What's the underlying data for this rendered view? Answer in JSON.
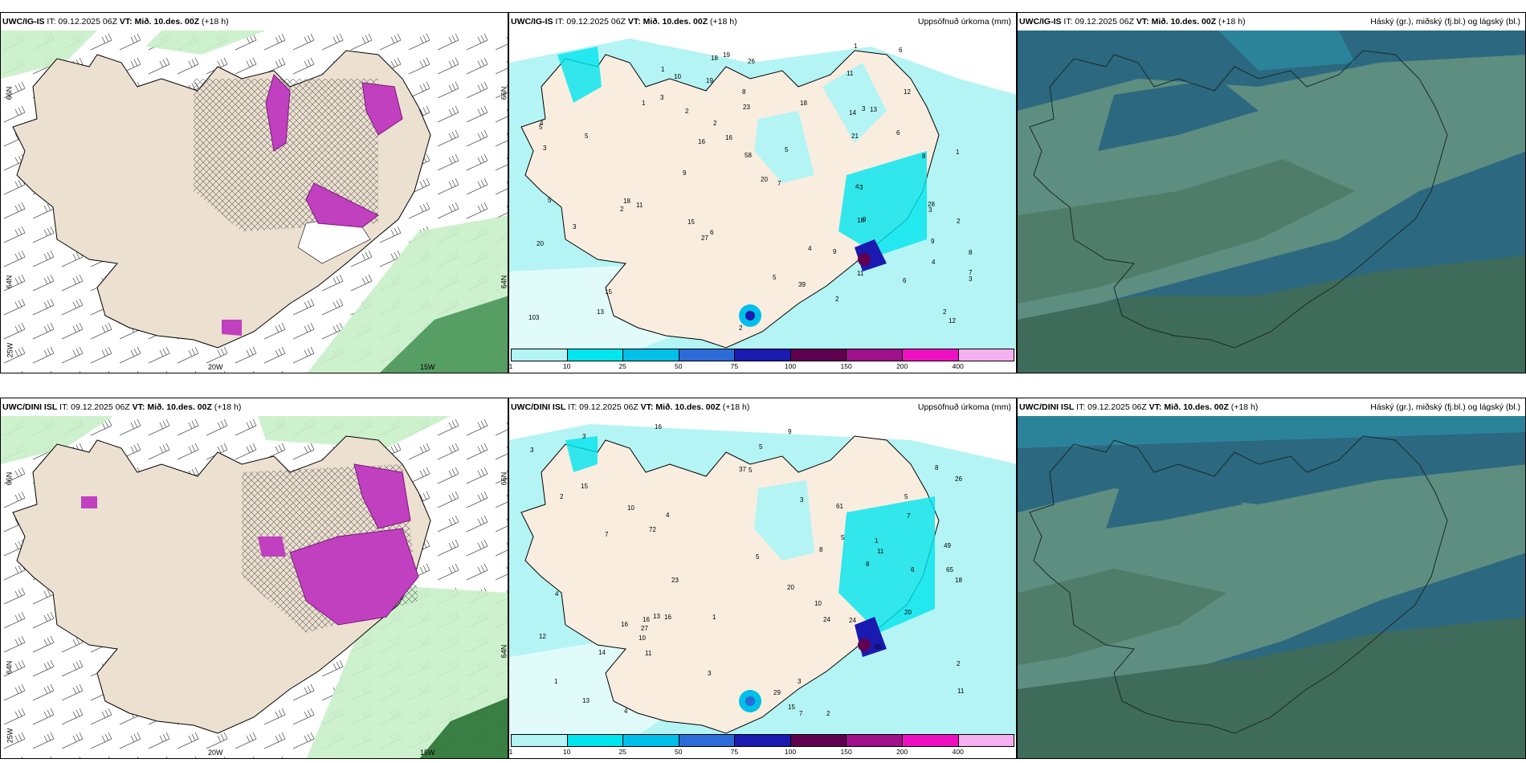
{
  "panels": [
    {
      "model": "UWC/IG-IS",
      "it": "IT: 09.12.2025 06Z",
      "vt": "VT: Mið. 10.des. 00Z",
      "lead": "(+18 h)",
      "right": "",
      "lon_labels": [
        "20W",
        "15W"
      ],
      "lat_labels": [
        "66N",
        "64N",
        "25W",
        "66N",
        "64N"
      ]
    },
    {
      "model": "UWC/IG-IS",
      "it": "IT: 09.12.2025 06Z",
      "vt": "VT: Mið. 10.des. 00Z",
      "lead": "(+18 h)",
      "right": "Uppsöfnuð úrkoma (mm)",
      "colorbar": [
        "1",
        "10",
        "25",
        "50",
        "75",
        "100",
        "150",
        "200",
        "400"
      ]
    },
    {
      "model": "UWC/IG-IS",
      "it": "IT: 09.12.2025 06Z",
      "vt": "VT: Mið. 10.des. 00Z",
      "lead": "(+18 h)",
      "right": "Háský (gr.), miðský (fj.bl.) og lágský (bl.)"
    },
    {
      "model": "UWC/DINI ISL",
      "it": "IT: 09.12.2025 06Z",
      "vt": "VT: Mið. 10.des. 00Z",
      "lead": "(+18 h)",
      "right": "",
      "lon_labels": [
        "20W",
        "15W"
      ],
      "lat_labels": [
        "66N",
        "64N",
        "25W",
        "66N",
        "64N"
      ]
    },
    {
      "model": "UWC/DINI ISL",
      "it": "IT: 09.12.2025 06Z",
      "vt": "VT: Mið. 10.des. 00Z",
      "lead": "(+18 h)",
      "right": "Uppsöfnuð úrkoma (mm)",
      "colorbar": [
        "1",
        "10",
        "25",
        "50",
        "75",
        "100",
        "150",
        "200",
        "400"
      ]
    },
    {
      "model": "UWC/DINI ISL",
      "it": "IT: 09.12.2025 06Z",
      "vt": "VT: Mið. 10.des. 00Z",
      "lead": "(+18 h)",
      "right": "Háský (gr.), miðský (fj.bl.) og lágský (bl.)"
    }
  ],
  "precip_values_top": [
    "2",
    "11",
    "23",
    "9",
    "2",
    "5",
    "10",
    "3",
    "3",
    "3",
    "2",
    "4",
    "1",
    "1",
    "2",
    "2",
    "1",
    "3",
    "2",
    "3",
    "9",
    "9",
    "7",
    "26",
    "103",
    "4",
    "6",
    "4",
    "5",
    "7",
    "13",
    "11",
    "5",
    "14",
    "16",
    "19",
    "5",
    "5",
    "3",
    "8",
    "6",
    "20",
    "9",
    "15",
    "16",
    "8",
    "19",
    "4",
    "21",
    "12",
    "18",
    "3",
    "6",
    "11",
    "6",
    "2",
    "18",
    "8",
    "13",
    "18",
    "15",
    "27",
    "20",
    "39",
    "28",
    "58",
    "1",
    "18",
    "12"
  ],
  "precip_values_bottom": [
    "2",
    "16",
    "20",
    "10",
    "5",
    "2",
    "4",
    "3",
    "1",
    "1",
    "8",
    "5",
    "16",
    "11",
    "15",
    "16",
    "15",
    "24",
    "2",
    "3",
    "4",
    "7",
    "1",
    "3",
    "13",
    "8",
    "7",
    "5",
    "13",
    "29",
    "23",
    "61",
    "9",
    "8",
    "16",
    "7",
    "49",
    "37",
    "26",
    "24",
    "5",
    "11",
    "3",
    "55",
    "18",
    "65",
    "20",
    "72",
    "12",
    "11",
    "10",
    "10",
    "14",
    "4",
    "6",
    "3",
    "5",
    "27"
  ],
  "colors": {
    "land": "#ece0d0",
    "snow_purple": "#c040c0",
    "green": "#c8f0c8",
    "precip_1": "#b4f4f4",
    "precip_10": "#00e5ee",
    "precip_25": "#00bfe8",
    "precip_50": "#2b6cd8",
    "precip_75": "#1a1ab0",
    "precip_100": "#600050",
    "precip_150": "#a0108a",
    "precip_200": "#ee10c0",
    "precip_400": "#f4b0f0",
    "cloud_high": "#5e8e80",
    "cloud_mid": "#2c6880",
    "cloud_low": "#3f6b5a"
  }
}
